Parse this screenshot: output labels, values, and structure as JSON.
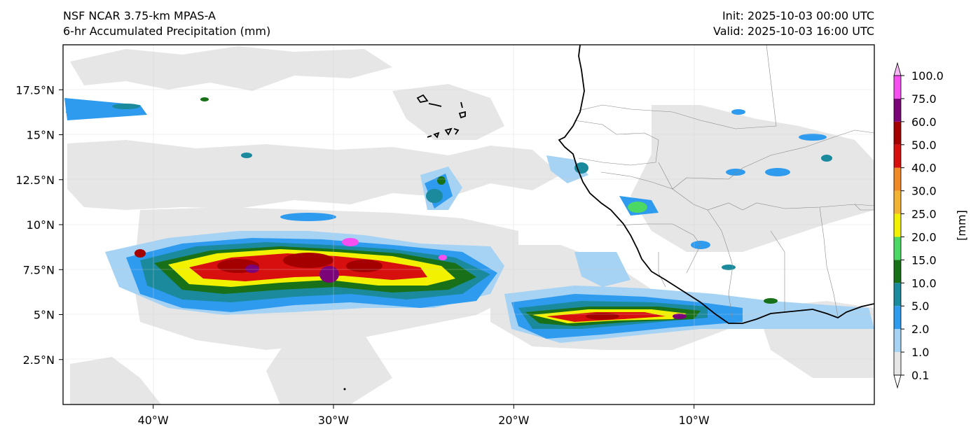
{
  "header": {
    "model": "NSF NCAR 3.75-km MPAS-A",
    "field": "6-hr Accumulated Precipitation (mm)",
    "init": "Init: 2025-10-03 00:00 UTC",
    "valid": "Valid: 2025-10-03 16:00 UTC"
  },
  "map": {
    "lon_range": [
      -45,
      0
    ],
    "lat_range": [
      0,
      20
    ],
    "lon_ticks": [
      {
        "value": -40,
        "label": "40°W"
      },
      {
        "value": -30,
        "label": "30°W"
      },
      {
        "value": -20,
        "label": "20°W"
      },
      {
        "value": -10,
        "label": "10°W"
      }
    ],
    "lat_ticks": [
      {
        "value": 17.5,
        "label": "17.5°N"
      },
      {
        "value": 15,
        "label": "15°N"
      },
      {
        "value": 12.5,
        "label": "12.5°N"
      },
      {
        "value": 10,
        "label": "10°N"
      },
      {
        "value": 7.5,
        "label": "7.5°N"
      },
      {
        "value": 5,
        "label": "5°N"
      },
      {
        "value": 2.5,
        "label": "2.5°N"
      }
    ]
  },
  "colorbar": {
    "unit_label": "[mm]",
    "levels": [
      {
        "label": "0.1",
        "color": "#e6e6e6"
      },
      {
        "label": "1.0",
        "color": "#a6d2f4"
      },
      {
        "label": "2.0",
        "color": "#2e9bef"
      },
      {
        "label": "5.0",
        "color": "#1a8a9c"
      },
      {
        "label": "10.0",
        "color": "#187018"
      },
      {
        "label": "15.0",
        "color": "#4cd864"
      },
      {
        "label": "20.0",
        "color": "#f2f200"
      },
      {
        "label": "25.0",
        "color": "#f4b433"
      },
      {
        "label": "30.0",
        "color": "#ef8a27"
      },
      {
        "label": "40.0",
        "color": "#d70f0f"
      },
      {
        "label": "50.0",
        "color": "#a40000"
      },
      {
        "label": "60.0",
        "color": "#7a0478"
      },
      {
        "label": "75.0",
        "color": "#f54ff2"
      },
      {
        "label": "100.0",
        "color": "#f5b8f5"
      }
    ]
  }
}
